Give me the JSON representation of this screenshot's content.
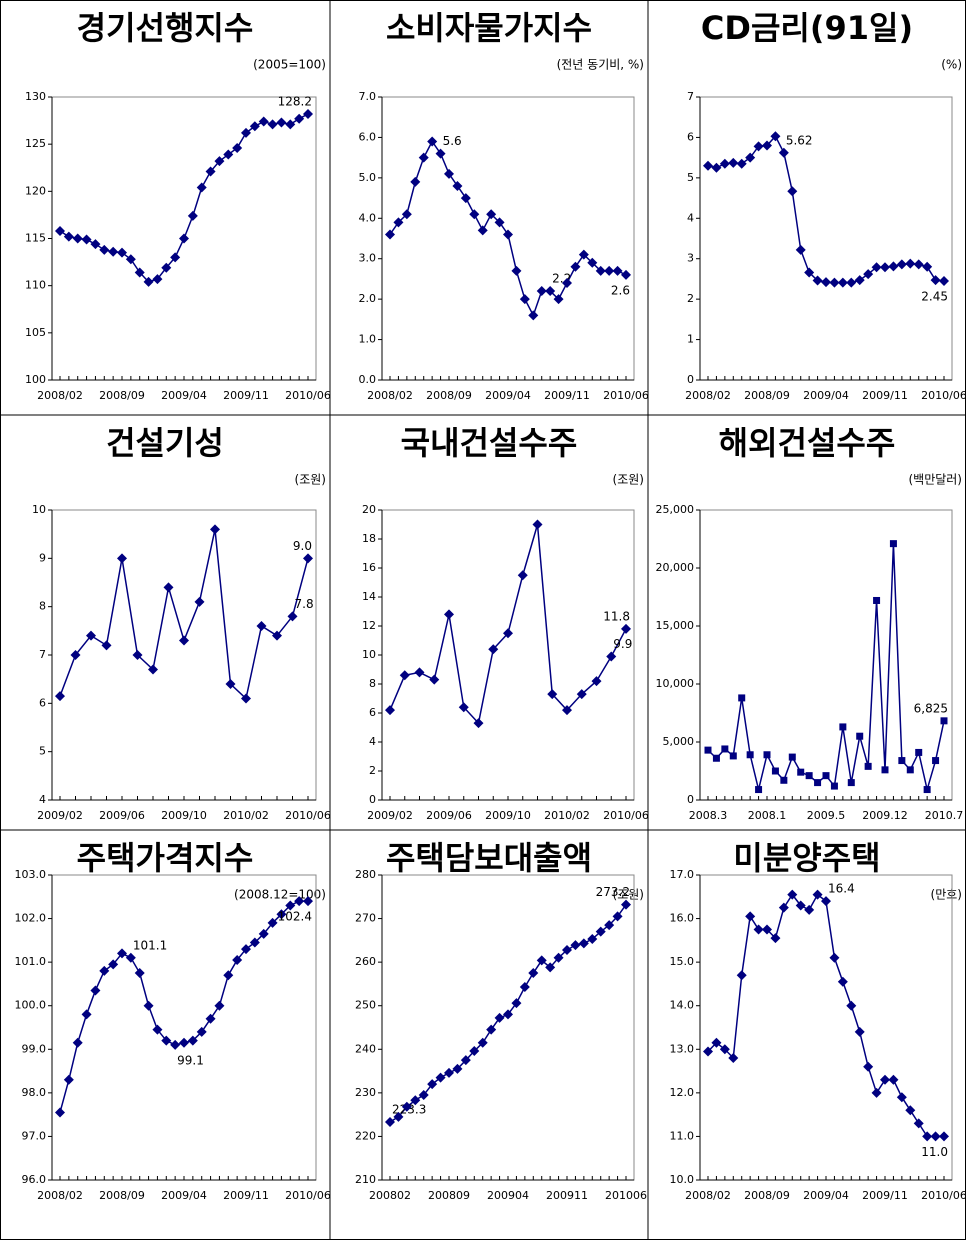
{
  "chart_data": [
    {
      "type": "line",
      "title": "경기선행지수",
      "subtitle": "(2005=100)",
      "color": "#000080",
      "marker": "diamond",
      "categories": [
        "2008/02",
        null,
        null,
        null,
        null,
        null,
        null,
        "2008/09",
        null,
        null,
        null,
        null,
        null,
        null,
        "2009/04",
        null,
        null,
        null,
        null,
        null,
        null,
        "2009/11",
        null,
        null,
        null,
        null,
        null,
        null,
        "2010/06"
      ],
      "values": [
        115.8,
        115.2,
        115.0,
        114.9,
        114.4,
        113.8,
        113.6,
        113.5,
        112.8,
        111.4,
        110.4,
        110.7,
        111.9,
        113.0,
        115.0,
        117.4,
        120.4,
        122.1,
        123.2,
        123.9,
        124.6,
        126.2,
        126.9,
        127.4,
        127.1,
        127.3,
        127.1,
        127.7,
        128.2
      ],
      "value_labels": [
        null,
        null,
        null,
        null,
        null,
        null,
        null,
        null,
        null,
        null,
        null,
        null,
        null,
        null,
        null,
        null,
        null,
        null,
        null,
        null,
        null,
        null,
        null,
        null,
        null,
        null,
        null,
        null,
        "128.2"
      ],
      "ylim": [
        100,
        130
      ],
      "yticks": [
        100,
        105,
        110,
        115,
        120,
        125,
        130
      ]
    },
    {
      "type": "line",
      "title": "소비자물가지수",
      "subtitle": "(전년 동기비, %)",
      "color": "#000080",
      "marker": "diamond",
      "categories": [
        "2008/02",
        null,
        null,
        null,
        null,
        null,
        null,
        "2008/09",
        null,
        null,
        null,
        null,
        null,
        null,
        "2009/04",
        null,
        null,
        null,
        null,
        null,
        null,
        "2009/11",
        null,
        null,
        null,
        null,
        null,
        null,
        "2010/06"
      ],
      "values": [
        3.6,
        3.9,
        4.1,
        4.9,
        5.5,
        5.9,
        5.6,
        5.1,
        4.8,
        4.5,
        4.1,
        3.7,
        4.1,
        3.9,
        3.6,
        2.7,
        2.0,
        1.6,
        2.2,
        2.2,
        2.0,
        2.4,
        2.8,
        3.1,
        2.9,
        2.7,
        2.7,
        2.7,
        2.6
      ],
      "value_labels": [
        null,
        null,
        null,
        null,
        null,
        null,
        "5.6",
        null,
        null,
        null,
        null,
        null,
        null,
        null,
        null,
        null,
        null,
        null,
        null,
        "2.2",
        null,
        null,
        null,
        null,
        null,
        null,
        null,
        null,
        "2.6"
      ],
      "ylim": [
        0,
        7
      ],
      "yticks": [
        {
          "value": 0,
          "label": "0.0"
        },
        {
          "value": 1,
          "label": "1.0"
        },
        {
          "value": 2,
          "label": "2.0"
        },
        {
          "value": 3,
          "label": "3.0"
        },
        {
          "value": 4,
          "label": "4.0"
        },
        {
          "value": 5,
          "label": "5.0"
        },
        {
          "value": 6,
          "label": "6.0"
        },
        {
          "value": 7,
          "label": "7.0"
        }
      ]
    },
    {
      "type": "line",
      "title": "CD금리(91일)",
      "subtitle": "(%)",
      "color": "#000080",
      "marker": "diamond",
      "categories": [
        "2008/02",
        null,
        null,
        null,
        null,
        null,
        null,
        "2008/09",
        null,
        null,
        null,
        null,
        null,
        null,
        "2009/04",
        null,
        null,
        null,
        null,
        null,
        null,
        "2009/11",
        null,
        null,
        null,
        null,
        null,
        null,
        "2010/06"
      ],
      "values": [
        5.3,
        5.25,
        5.35,
        5.37,
        5.35,
        5.5,
        5.78,
        5.8,
        6.03,
        5.62,
        4.67,
        3.22,
        2.66,
        2.46,
        2.42,
        2.41,
        2.41,
        2.41,
        2.47,
        2.62,
        2.79,
        2.79,
        2.81,
        2.86,
        2.88,
        2.86,
        2.8,
        2.47,
        2.45
      ],
      "value_labels": [
        null,
        null,
        null,
        null,
        null,
        null,
        null,
        null,
        null,
        "5.62",
        null,
        null,
        null,
        null,
        null,
        null,
        null,
        null,
        null,
        null,
        null,
        null,
        null,
        null,
        null,
        null,
        null,
        null,
        "2.45"
      ],
      "ylim": [
        0,
        7
      ],
      "yticks": [
        0,
        1,
        2,
        3,
        4,
        5,
        6,
        7
      ]
    },
    {
      "type": "line",
      "title": "건설기성",
      "subtitle": "(조원)",
      "color": "#000080",
      "marker": "diamond",
      "categories": [
        "2009/02",
        null,
        null,
        null,
        "2009/06",
        null,
        null,
        null,
        "2009/10",
        null,
        null,
        null,
        "2010/02",
        null,
        null,
        null,
        "2010/06"
      ],
      "values": [
        6.15,
        7.0,
        7.4,
        7.2,
        9.0,
        7.0,
        6.7,
        8.4,
        7.3,
        8.1,
        9.6,
        6.4,
        6.1,
        7.6,
        7.4,
        7.8,
        9.0
      ],
      "value_labels": [
        null,
        null,
        null,
        null,
        null,
        null,
        null,
        null,
        null,
        null,
        null,
        null,
        null,
        null,
        null,
        "7.8",
        "9.0"
      ],
      "ylim": [
        4,
        10
      ],
      "yticks": [
        4,
        5,
        6,
        7,
        8,
        9,
        10
      ]
    },
    {
      "type": "line",
      "title": "국내건설수주",
      "subtitle": "(조원)",
      "color": "#000080",
      "marker": "diamond",
      "categories": [
        "2009/02",
        null,
        null,
        null,
        "2009/06",
        null,
        null,
        null,
        "2009/10",
        null,
        null,
        null,
        "2010/02",
        null,
        null,
        null,
        "2010/06"
      ],
      "values": [
        6.2,
        8.6,
        8.8,
        8.3,
        12.8,
        6.4,
        5.3,
        10.4,
        11.5,
        15.5,
        19.0,
        7.3,
        6.2,
        7.3,
        8.2,
        9.9,
        11.8
      ],
      "value_labels": [
        null,
        null,
        null,
        null,
        null,
        null,
        null,
        null,
        null,
        null,
        null,
        null,
        null,
        null,
        null,
        "9.9",
        "11.8"
      ],
      "ylim": [
        0,
        20
      ],
      "yticks": [
        0,
        2,
        4,
        6,
        8,
        10,
        12,
        14,
        16,
        18,
        20
      ]
    },
    {
      "type": "line",
      "title": "해외건설수주",
      "subtitle": "(백만달러)",
      "color": "#000080",
      "marker": "square",
      "categories": [
        "2008.3",
        null,
        null,
        null,
        null,
        null,
        null,
        "2008.1",
        null,
        null,
        null,
        null,
        null,
        null,
        "2009.5",
        null,
        null,
        null,
        null,
        null,
        null,
        "2009.12",
        null,
        null,
        null,
        null,
        null,
        null,
        "2010.7"
      ],
      "values": [
        4300,
        3600,
        4400,
        3800,
        8800,
        3900,
        900,
        3900,
        2500,
        1700,
        3700,
        2400,
        2100,
        1500,
        2100,
        1200,
        6300,
        1500,
        5500,
        2900,
        17200,
        2600,
        22100,
        3400,
        2600,
        4100,
        900,
        3400,
        6825
      ],
      "value_labels": [
        null,
        null,
        null,
        null,
        null,
        null,
        null,
        null,
        null,
        null,
        null,
        null,
        null,
        null,
        null,
        null,
        null,
        null,
        null,
        null,
        null,
        null,
        null,
        null,
        null,
        null,
        null,
        null,
        "6,825"
      ],
      "ylim": [
        0,
        25000
      ],
      "yticks": [
        0,
        {
          "value": 5000,
          "label": "5,000"
        },
        {
          "value": 10000,
          "label": "10,000"
        },
        {
          "value": 15000,
          "label": "15,000"
        },
        {
          "value": 20000,
          "label": "20,000"
        },
        {
          "value": 25000,
          "label": "25,000"
        }
      ]
    },
    {
      "type": "line",
      "title": "주택가격지수",
      "subtitle": "(2008.12=100)",
      "color": "#000080",
      "marker": "diamond",
      "categories": [
        "2008/02",
        null,
        null,
        null,
        null,
        null,
        null,
        "2008/09",
        null,
        null,
        null,
        null,
        null,
        null,
        "2009/04",
        null,
        null,
        null,
        null,
        null,
        null,
        "2009/11",
        null,
        null,
        null,
        null,
        null,
        null,
        "2010/06"
      ],
      "values": [
        97.55,
        98.3,
        99.15,
        99.8,
        100.35,
        100.8,
        100.95,
        101.2,
        101.1,
        100.75,
        100.0,
        99.45,
        99.2,
        99.1,
        99.15,
        99.2,
        99.4,
        99.7,
        100.0,
        100.7,
        101.05,
        101.3,
        101.45,
        101.65,
        101.9,
        102.1,
        102.3,
        102.4,
        102.4
      ],
      "value_labels": [
        null,
        null,
        null,
        null,
        null,
        null,
        null,
        null,
        "101.1",
        null,
        null,
        null,
        null,
        "99.1",
        null,
        null,
        null,
        null,
        null,
        null,
        null,
        null,
        null,
        null,
        null,
        null,
        null,
        null,
        "102.4"
      ],
      "ylim": [
        96,
        103
      ],
      "yticks": [
        {
          "value": 96,
          "label": "96.0"
        },
        {
          "value": 97,
          "label": "97.0"
        },
        {
          "value": 98,
          "label": "98.0"
        },
        {
          "value": 99,
          "label": "99.0"
        },
        {
          "value": 100,
          "label": "100.0"
        },
        {
          "value": 101,
          "label": "101.0"
        },
        {
          "value": 102,
          "label": "102.0"
        },
        {
          "value": 103,
          "label": "103.0"
        }
      ]
    },
    {
      "type": "line",
      "title": "주택담보대출액",
      "subtitle": "(조원)",
      "color": "#000080",
      "marker": "diamond",
      "categories": [
        "200802",
        null,
        null,
        null,
        null,
        null,
        null,
        "200809",
        null,
        null,
        null,
        null,
        null,
        null,
        "200904",
        null,
        null,
        null,
        null,
        null,
        null,
        "200911",
        null,
        null,
        null,
        null,
        null,
        null,
        "201006"
      ],
      "values": [
        223.3,
        224.5,
        226.8,
        228.3,
        229.5,
        232.0,
        233.5,
        234.6,
        235.5,
        237.5,
        239.6,
        241.5,
        244.5,
        247.2,
        248.0,
        250.6,
        254.3,
        257.5,
        260.4,
        258.8,
        261.0,
        262.8,
        263.9,
        264.3,
        265.3,
        267.0,
        268.5,
        270.5,
        273.2
      ],
      "value_labels": [
        "223.3",
        null,
        null,
        null,
        null,
        null,
        null,
        null,
        null,
        null,
        null,
        null,
        null,
        null,
        null,
        null,
        null,
        null,
        null,
        null,
        null,
        null,
        null,
        null,
        null,
        null,
        null,
        null,
        "273.2"
      ],
      "ylim": [
        210,
        280
      ],
      "yticks": [
        210,
        220,
        230,
        240,
        250,
        260,
        270,
        280
      ]
    },
    {
      "type": "line",
      "title": "미분양주택",
      "subtitle": "(만호)",
      "color": "#000080",
      "marker": "diamond",
      "categories": [
        "2008/02",
        null,
        null,
        null,
        null,
        null,
        null,
        "2008/09",
        null,
        null,
        null,
        null,
        null,
        null,
        "2009/04",
        null,
        null,
        null,
        null,
        null,
        null,
        "2009/11",
        null,
        null,
        null,
        null,
        null,
        null,
        "2010/06"
      ],
      "values": [
        12.95,
        13.15,
        13.0,
        12.8,
        14.7,
        16.05,
        15.75,
        15.75,
        15.55,
        16.25,
        16.55,
        16.3,
        16.2,
        16.55,
        16.4,
        15.1,
        14.55,
        14.0,
        13.4,
        12.6,
        12.0,
        12.3,
        12.3,
        11.9,
        11.6,
        11.3,
        11.0,
        11.0,
        11.0
      ],
      "value_labels": [
        null,
        null,
        null,
        null,
        null,
        null,
        null,
        null,
        null,
        null,
        null,
        null,
        null,
        null,
        "16.4",
        null,
        null,
        null,
        null,
        null,
        null,
        null,
        null,
        null,
        null,
        null,
        null,
        null,
        "11.0"
      ],
      "ylim": [
        10,
        17
      ],
      "yticks": [
        {
          "value": 10,
          "label": "10.0"
        },
        {
          "value": 11,
          "label": "11.0"
        },
        {
          "value": 12,
          "label": "12.0"
        },
        {
          "value": 13,
          "label": "13.0"
        },
        {
          "value": 14,
          "label": "14.0"
        },
        {
          "value": 15,
          "label": "15.0"
        },
        {
          "value": 16,
          "label": "16.0"
        },
        {
          "value": 17,
          "label": "17.0"
        }
      ]
    }
  ]
}
